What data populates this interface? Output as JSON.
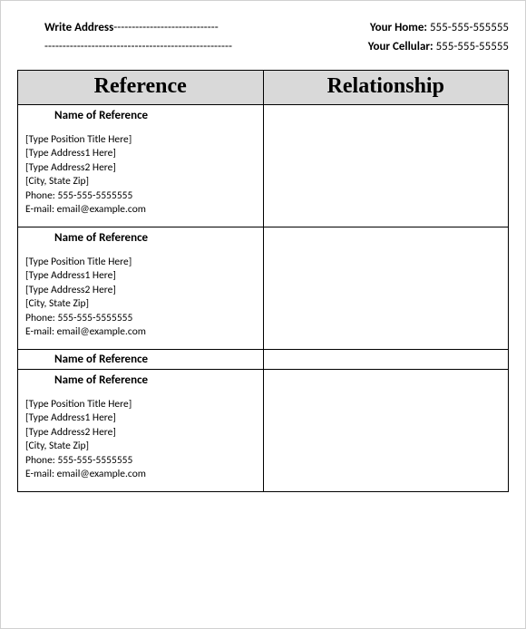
{
  "header": {
    "address_label": "Write Address",
    "dashes_after": "-----------------------------",
    "dashes_line2": "----------------------------------------------------",
    "home_label": "Your Home:",
    "home_value": "555-555-555555",
    "cell_label": "Your Cellular:",
    "cell_value": "555-555-55555"
  },
  "table": {
    "columns": [
      "Reference",
      "Relationship"
    ],
    "header_bg": "#d9d9d9",
    "border_color": "#000000",
    "rows": [
      {
        "name": "Name of Reference",
        "position": "[Type Position Title Here]",
        "address1": "[Type Address1 Here]",
        "address2": "[Type Address2 Here]",
        "citystate": "[City, State Zip]",
        "phone": "Phone: 555-555-5555555",
        "email": "E-mail: email@example.com",
        "relationship": ""
      },
      {
        "name": "Name of Reference",
        "position": "[Type Position Title Here]",
        "address1": "[Type Address1 Here]",
        "address2": "[Type Address2 Here]",
        "citystate": "[City, State Zip]",
        "phone": "Phone: 555-555-5555555",
        "email": "E-mail: email@example.com",
        "relationship": ""
      },
      {
        "name": "Name of Reference",
        "short": true,
        "relationship": ""
      },
      {
        "name": "Name of Reference",
        "position": "[Type Position Title Here]",
        "address1": "[Type Address1 Here]",
        "address2": "[Type Address2 Here]",
        "citystate": "[City, State Zip]",
        "phone": "Phone: 555-555-5555555",
        "email": "E-mail: email@example.com",
        "relationship": ""
      }
    ]
  }
}
